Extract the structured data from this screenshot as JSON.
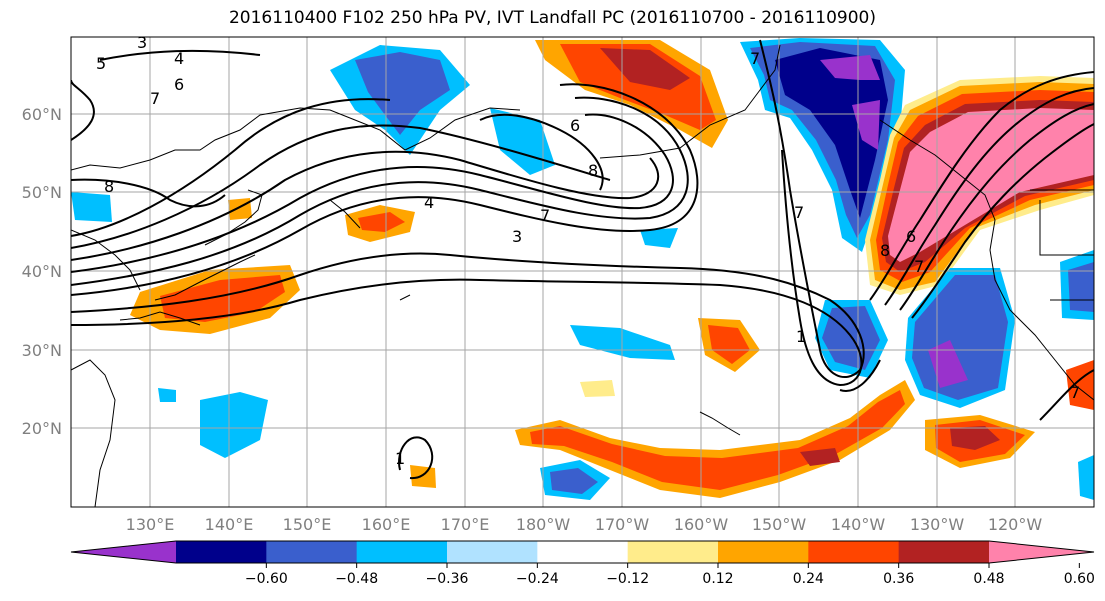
{
  "title": "2016110400 F102 250 hPa PV, IVT Landfall PC (2016110700 - 2016110900)",
  "lat_labels": [
    "60°N",
    "50°N",
    "40°N",
    "30°N",
    "20°N"
  ],
  "lon_labels": [
    "130°E",
    "140°E",
    "150°E",
    "160°E",
    "170°E",
    "180°W",
    "170°W",
    "160°W",
    "150°W",
    "140°W",
    "130°W",
    "120°W"
  ],
  "colorbar": {
    "colors": [
      "#9932cc",
      "#00008b",
      "#3a5fcd",
      "#00bfff",
      "#b0e2ff",
      "#ffffff",
      "#ffec8b",
      "#ffa500",
      "#ff4500",
      "#b22222",
      "#ff82ab"
    ],
    "ticks": [
      "−0.60",
      "−0.48",
      "−0.36",
      "−0.24",
      "−0.12",
      "0.12",
      "0.24",
      "0.36",
      "0.48",
      "0.60"
    ]
  },
  "contour_labels": [
    "3",
    "4",
    "5",
    "6",
    "7",
    "8",
    "6",
    "8",
    "4",
    "7",
    "3",
    "7",
    "7",
    "8",
    "6",
    "7",
    "1",
    "7",
    "1"
  ]
}
